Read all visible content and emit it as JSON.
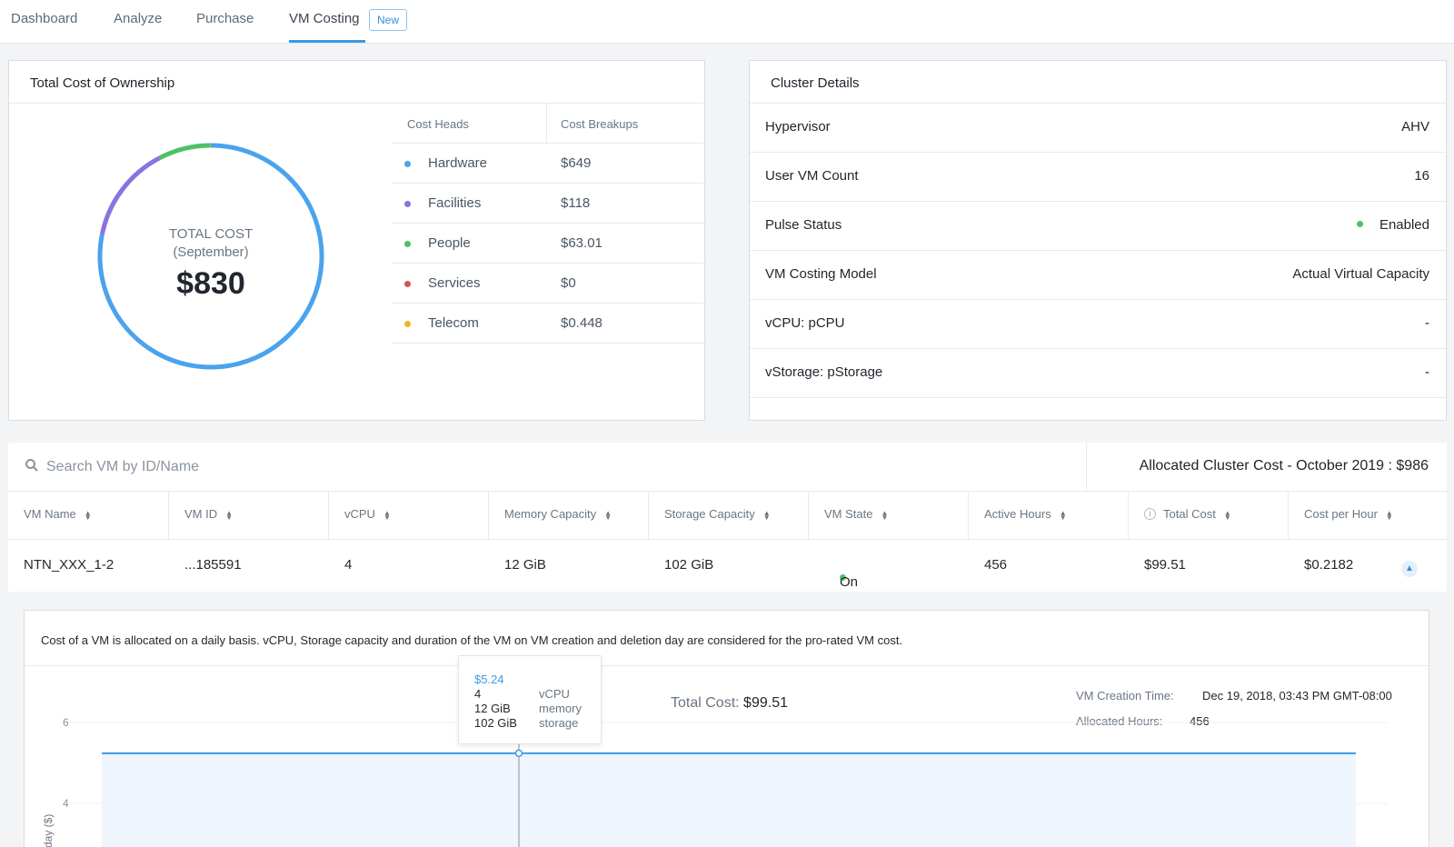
{
  "nav": {
    "tabs": [
      "Dashboard",
      "Analyze",
      "Purchase",
      "VM Costing"
    ],
    "new_badge": "New",
    "active": "VM Costing"
  },
  "tco": {
    "title": "Total Cost of Ownership",
    "label_top": "TOTAL COST",
    "label_period": "(September)",
    "total": "$830",
    "headers": [
      "Cost Heads",
      "Cost Breakups"
    ],
    "rows": [
      {
        "name": "Hardware",
        "value": "$649",
        "color": "#4aa3ec"
      },
      {
        "name": "Facilities",
        "value": "$118",
        "color": "#8a72e0"
      },
      {
        "name": "People",
        "value": "$63.01",
        "color": "#4cc265"
      },
      {
        "name": "Services",
        "value": "$0",
        "color": "#d9534f"
      },
      {
        "name": "Telecom",
        "value": "$0.448",
        "color": "#f0b428"
      }
    ],
    "donut_values": [
      649,
      118,
      63.01,
      0,
      0.448
    ]
  },
  "cluster": {
    "title": "Cluster Details",
    "rows": [
      {
        "label": "Hypervisor",
        "value": "AHV"
      },
      {
        "label": "User VM Count",
        "value": "16"
      },
      {
        "label": "Pulse Status",
        "value": "Enabled"
      },
      {
        "label": "VM Costing Model",
        "value": "Actual Virtual Capacity"
      },
      {
        "label": "vCPU: pCPU",
        "value": "-"
      },
      {
        "label": "vStorage: pStorage",
        "value": "-"
      }
    ]
  },
  "vm": {
    "search_placeholder": "Search VM by ID/Name",
    "allocated": "Allocated Cluster Cost - October 2019 : $986",
    "columns": [
      "VM Name",
      "VM ID",
      "vCPU",
      "Memory Capacity",
      "Storage Capacity",
      "VM State",
      "Active Hours",
      "Total Cost",
      "Cost per Hour"
    ],
    "row": [
      "NTN_XXX_1-2",
      "...185591",
      "4",
      "12 GiB",
      "102 GiB",
      "On",
      "456",
      "$99.51",
      "$0.2182"
    ]
  },
  "detail": {
    "note": "Cost of a VM is allocated on a daily basis. vCPU, Storage capacity and duration of the VM on VM creation and deletion day are considered for the pro-rated VM cost.",
    "total_cost_label": "Total Cost:",
    "total_cost_value": "$99.51",
    "creation_label": "VM Creation Time:",
    "creation_value": "Dec 19, 2018, 03:43 PM GMT-08:00",
    "hours_label": "Allocated Hours:",
    "hours_value": "456",
    "tooltip": {
      "price": "$5.24",
      "rows": [
        {
          "value": "4",
          "key": "vCPU"
        },
        {
          "value": "12 GiB",
          "key": "memory"
        },
        {
          "value": "102 GiB",
          "key": "storage"
        }
      ]
    }
  },
  "chart_data": {
    "type": "area",
    "ylabel": "day ($)",
    "y_ticks": [
      "6",
      "4"
    ],
    "ylim": [
      3,
      7
    ],
    "series": [
      {
        "values": [
          5.24,
          5.24
        ]
      }
    ],
    "grid": true
  }
}
